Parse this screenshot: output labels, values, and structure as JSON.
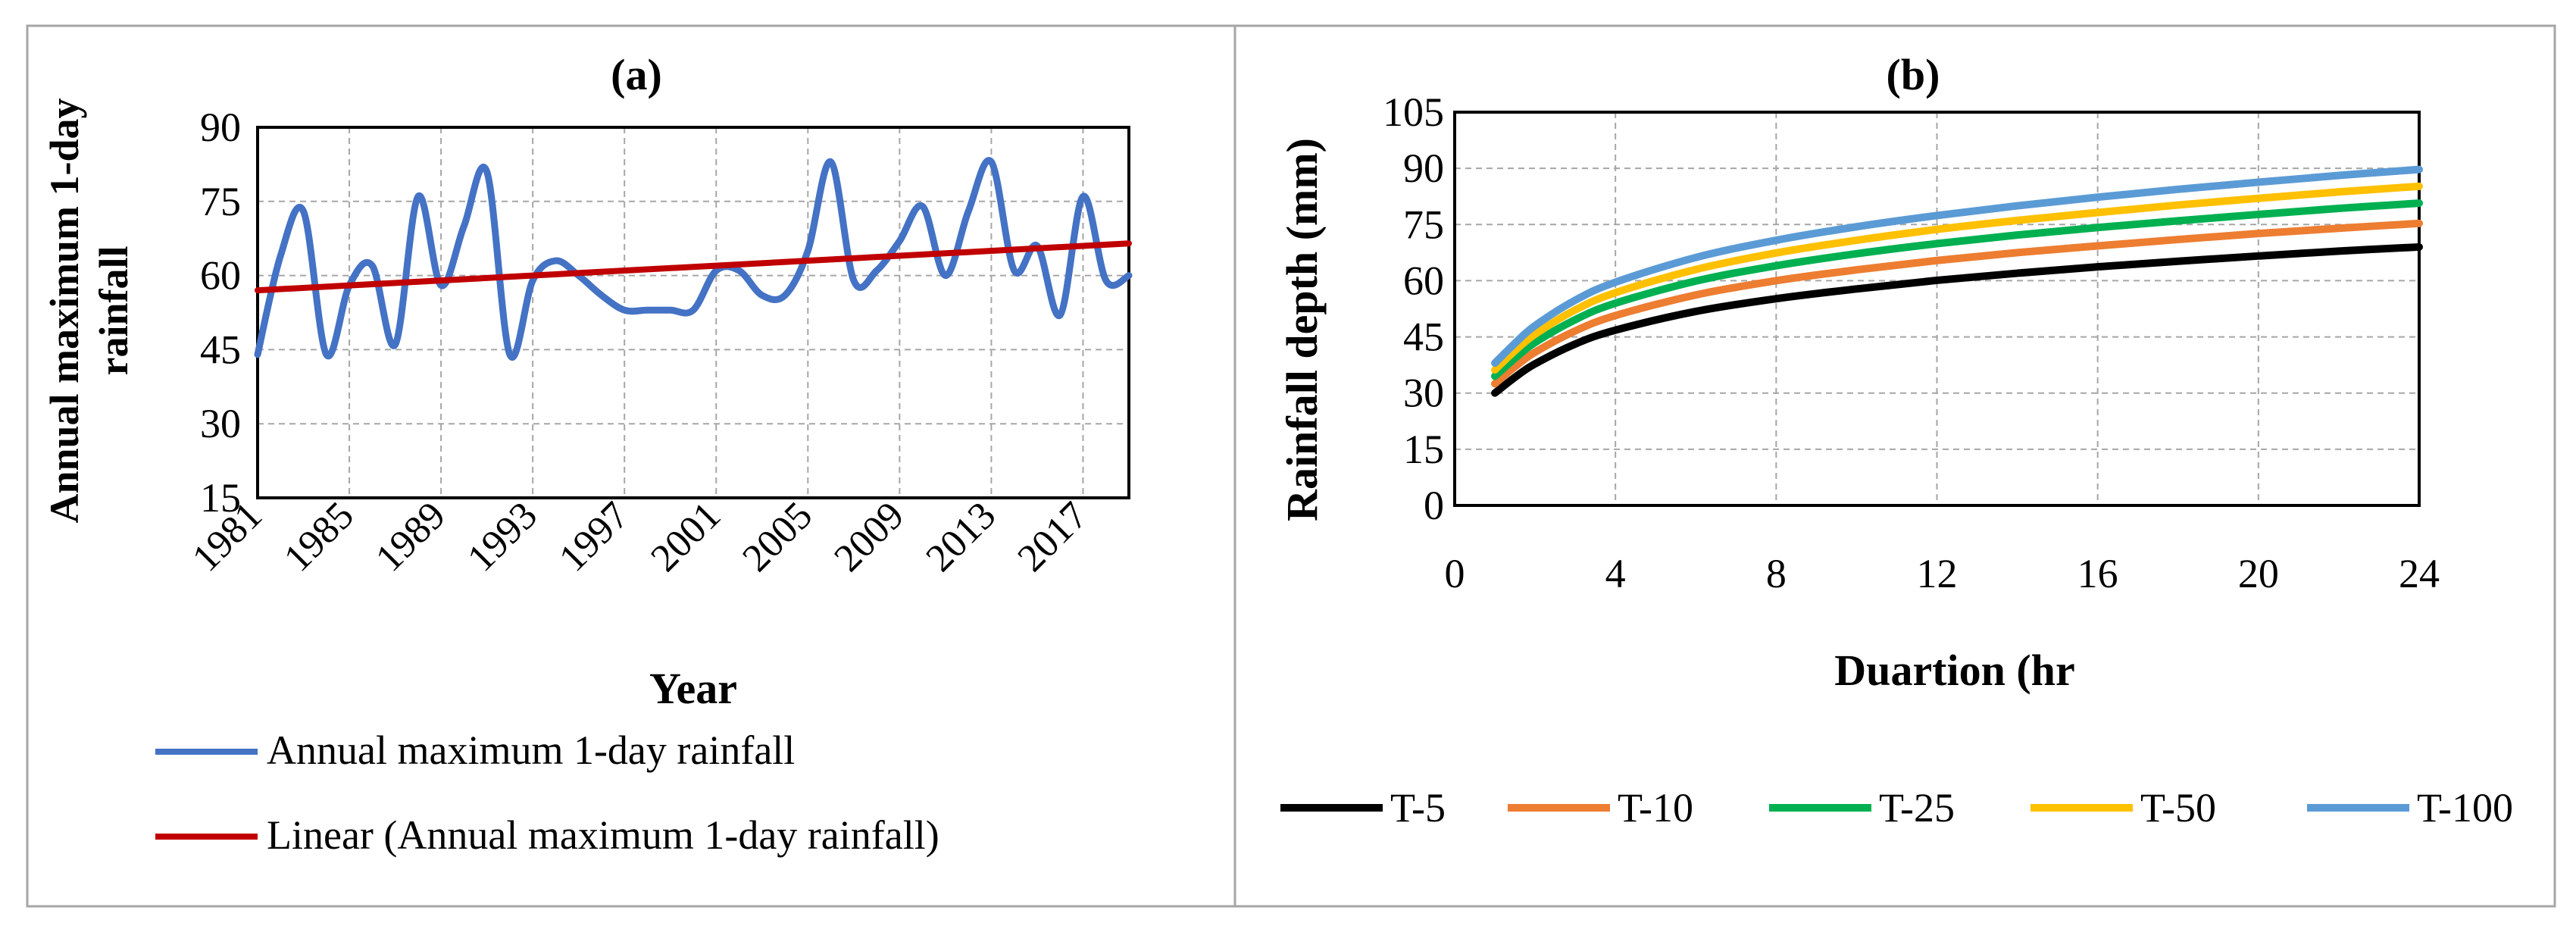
{
  "chart_data": [
    {
      "type": "line",
      "panel_label": "(a)",
      "title": "",
      "xlabel": "Year",
      "ylabel": "Annual maximum 1-day rainfall",
      "xlim": [
        1981,
        2019
      ],
      "ylim": [
        15,
        90
      ],
      "x_ticks": [
        1981,
        1985,
        1989,
        1993,
        1997,
        2001,
        2005,
        2009,
        2013,
        2017
      ],
      "y_ticks": [
        15,
        30,
        45,
        60,
        75,
        90
      ],
      "grid": true,
      "legend_position": "bottom",
      "series": [
        {
          "name": "Annual maximum 1-day rainfall",
          "color": "#4472C4",
          "smooth": true,
          "x": [
            1981,
            1982,
            1983,
            1984,
            1985,
            1986,
            1987,
            1988,
            1989,
            1990,
            1991,
            1992,
            1993,
            1994,
            1995,
            1996,
            1997,
            1998,
            1999,
            2000,
            2001,
            2002,
            2003,
            2004,
            2005,
            2006,
            2007,
            2008,
            2009,
            2010,
            2011,
            2012,
            2013,
            2014,
            2015,
            2016,
            2017,
            2018,
            2019
          ],
          "values": [
            44,
            64,
            73,
            44,
            58,
            62,
            46,
            76,
            58,
            70,
            81,
            44,
            59,
            63,
            60,
            56,
            53,
            53,
            53,
            53,
            61,
            61,
            56,
            56,
            65,
            83,
            59,
            61,
            67,
            74,
            60,
            73,
            83,
            61,
            66,
            52,
            76,
            59,
            60
          ]
        },
        {
          "name": "Linear (Annual maximum 1-day rainfall)",
          "color": "#C00000",
          "smooth": false,
          "x": [
            1981,
            2019
          ],
          "values": [
            57,
            66.5
          ]
        }
      ]
    },
    {
      "type": "line",
      "panel_label": "(b)",
      "title": "",
      "xlabel": "Duartion  (hr",
      "ylabel": "Rainfall depth (mm)",
      "xlim": [
        0,
        24
      ],
      "ylim": [
        0,
        105
      ],
      "x_ticks": [
        0,
        4,
        8,
        12,
        16,
        20,
        24
      ],
      "y_ticks": [
        0,
        15,
        30,
        45,
        60,
        75,
        90,
        105
      ],
      "grid": true,
      "legend_position": "bottom",
      "series": [
        {
          "name": "T-5",
          "color": "#000000",
          "x": [
            1,
            1.5,
            2,
            3,
            4,
            6,
            8,
            10,
            12,
            14,
            16,
            18,
            20,
            22,
            24
          ],
          "values": [
            30,
            34.2,
            37.8,
            43.1,
            46.8,
            51.8,
            55.2,
            57.8,
            60.1,
            62,
            63.7,
            65.2,
            66.6,
            67.9,
            69
          ]
        },
        {
          "name": "T-10",
          "color": "#ED7D31",
          "x": [
            1,
            1.5,
            2,
            3,
            4,
            6,
            8,
            10,
            12,
            14,
            16,
            18,
            20,
            22,
            24
          ],
          "values": [
            32.5,
            37,
            40.9,
            46.6,
            50.7,
            56.2,
            60,
            62.9,
            65.4,
            67.5,
            69.3,
            71,
            72.6,
            74,
            75.3
          ]
        },
        {
          "name": "T-25",
          "color": "#00B050",
          "x": [
            1,
            1.5,
            2,
            3,
            4,
            6,
            8,
            10,
            12,
            14,
            16,
            18,
            20,
            22,
            24
          ],
          "values": [
            34.5,
            39.3,
            43.5,
            49.6,
            54,
            59.9,
            64,
            67.2,
            69.9,
            72.2,
            74.2,
            76,
            77.7,
            79.3,
            80.7
          ]
        },
        {
          "name": "T-50",
          "color": "#FFC000",
          "x": [
            1,
            1.5,
            2,
            3,
            4,
            6,
            8,
            10,
            12,
            14,
            16,
            18,
            20,
            22,
            24
          ],
          "values": [
            36.2,
            41.3,
            45.7,
            52.2,
            56.8,
            63,
            67.4,
            70.8,
            73.7,
            76.1,
            78.2,
            80.2,
            82,
            83.7,
            85.2
          ]
        },
        {
          "name": "T-100",
          "color": "#5B9BD5",
          "x": [
            1,
            1.5,
            2,
            3,
            4,
            6,
            8,
            10,
            12,
            14,
            16,
            18,
            20,
            22,
            24
          ],
          "values": [
            38,
            43.3,
            48,
            54.8,
            59.6,
            66.2,
            70.8,
            74.4,
            77.4,
            80,
            82.3,
            84.4,
            86.3,
            88.1,
            89.7
          ]
        }
      ]
    }
  ]
}
